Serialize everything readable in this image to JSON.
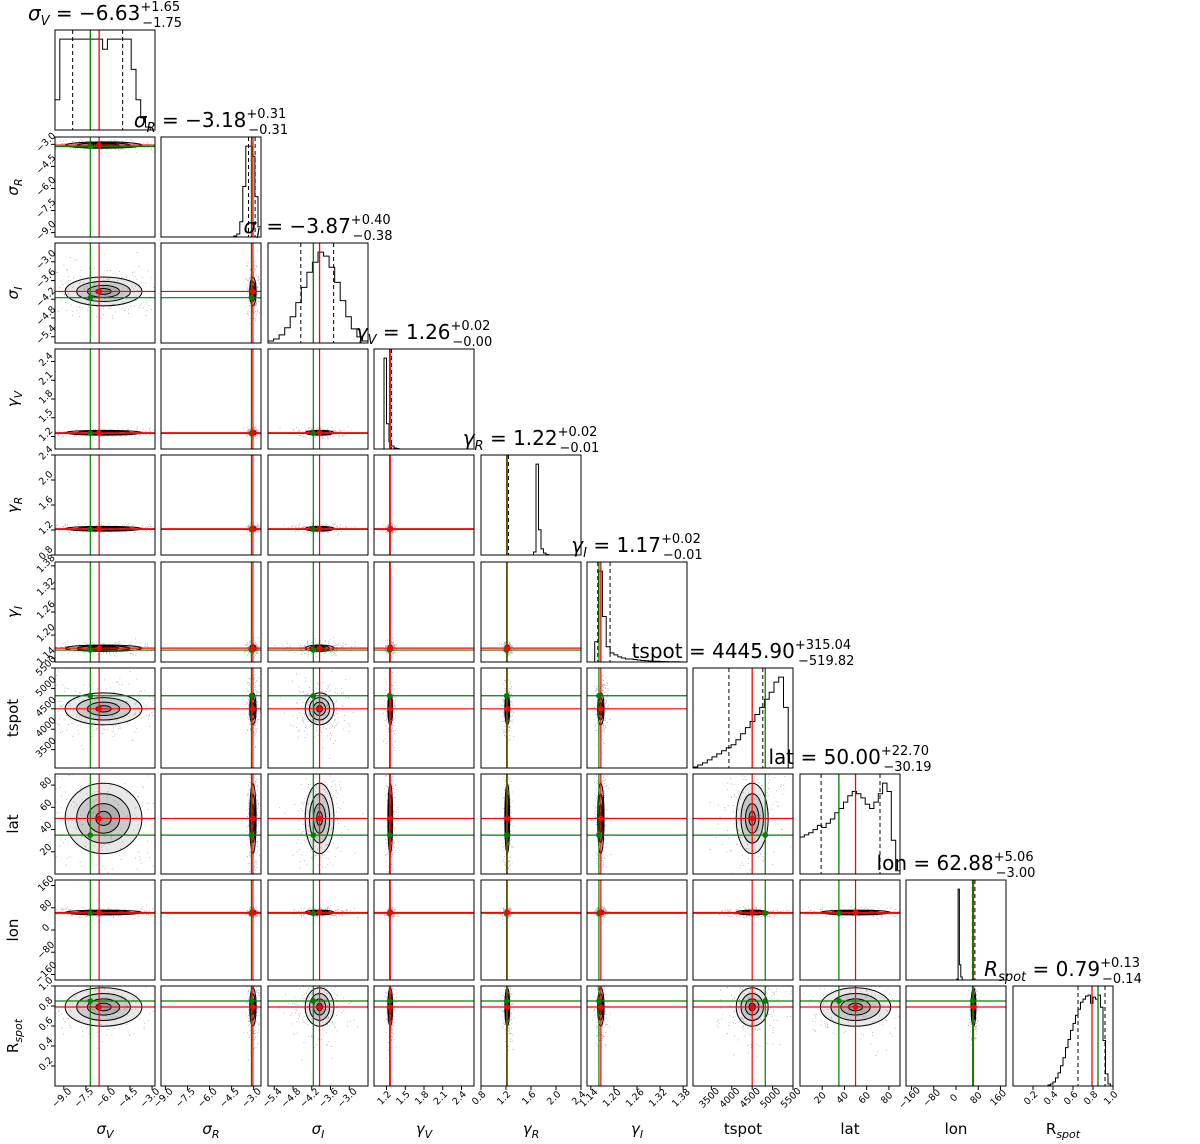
{
  "chart_data": {
    "type": "corner",
    "description_labels": {
      "colors": {
        "truth_red": "#ff0000",
        "truth_green": "#008000",
        "contour": "#000000",
        "fill": "#808080"
      }
    },
    "parameters": [
      {
        "id": "sigma_V",
        "label": "σ",
        "sub": "V",
        "title": "σ",
        "title_sub": "V",
        "value": "= −6.63",
        "plus": "+1.65",
        "minus": "−1.75",
        "range": [
          -9.6,
          -2.8
        ],
        "ticks": [
          -9.0,
          -7.5,
          -6.0,
          -4.5,
          -3.0
        ],
        "tick_labels": [
          "−9.0",
          "−7.5",
          "−6.0",
          "−4.5",
          "−3.0"
        ],
        "red": -6.6,
        "green": -7.2,
        "q16": -8.4,
        "q84": -5.0,
        "hist": [
          3,
          9,
          9,
          9,
          9,
          9,
          9,
          9,
          9,
          9,
          8,
          9,
          9,
          9,
          9,
          9,
          6,
          3,
          1.2,
          0.3,
          0
        ]
      },
      {
        "id": "sigma_R",
        "label": "σ",
        "sub": "R",
        "title": "σ",
        "title_sub": "R",
        "value": "= −3.18",
        "plus": "+0.31",
        "minus": "−0.31",
        "range": [
          -9.3,
          -2.5
        ],
        "ticks": [
          -9.0,
          -7.5,
          -6.0,
          -4.5,
          -3.0
        ],
        "tick_labels": [
          "−9.0",
          "−7.5",
          "−6.0",
          "−4.5",
          "−3.0"
        ],
        "red": -3.05,
        "green": -3.15,
        "q16": -3.35,
        "q84": -2.9,
        "hist": [
          0.0,
          0.0,
          0.0,
          0.0,
          0.0,
          0.0,
          0.0,
          0.0,
          0.0,
          0.0,
          0.0,
          0.0,
          0.0,
          0.0,
          0.0,
          0.0,
          0.0,
          0.0,
          0.0,
          0.0,
          0.0,
          0.0,
          0.0,
          0.0,
          0.1,
          0.3,
          1.5,
          5,
          9,
          9,
          8,
          4,
          1
        ]
      },
      {
        "id": "sigma_I",
        "label": "σ",
        "sub": "I",
        "title": "σ",
        "title_sub": "I",
        "value": "= −3.87",
        "plus": "+0.40",
        "minus": "−0.38",
        "range": [
          -5.6,
          -2.4
        ],
        "ticks": [
          -5.4,
          -4.8,
          -4.2,
          -3.6,
          -3.0
        ],
        "tick_labels": [
          "−5.4",
          "−4.8",
          "−4.2",
          "−3.6",
          "−3.0"
        ],
        "red": -3.95,
        "green": -4.15,
        "q16": -4.55,
        "q84": -3.5,
        "hist": [
          0.2,
          0.4,
          0.8,
          1.5,
          2.6,
          4,
          5.5,
          7,
          8,
          9,
          8.6,
          7.5,
          6,
          4.2,
          2.6,
          1.4,
          0.6,
          0.2
        ]
      },
      {
        "id": "gamma_V",
        "label": "γ",
        "sub": "V",
        "title": "γ",
        "title_sub": "V",
        "value": "= 1.26",
        "plus": "+0.02",
        "minus": "−0.00",
        "range": [
          1.0,
          2.6
        ],
        "ticks": [
          1.2,
          1.5,
          1.8,
          2.1,
          2.4
        ],
        "tick_labels": [
          "1.2",
          "1.5",
          "1.8",
          "2.1",
          "2.4"
        ],
        "red": 1.26,
        "green": 1.25,
        "q16": 1.255,
        "q84": 1.28,
        "hist": [
          0,
          0,
          0,
          0,
          9,
          2.5,
          0.7,
          0.3,
          0.1,
          0.05,
          0,
          0,
          0,
          0,
          0,
          0,
          0,
          0,
          0,
          0,
          0,
          0,
          0,
          0,
          0,
          0,
          0,
          0,
          0,
          0,
          0,
          0,
          0,
          0,
          0,
          0,
          0,
          0,
          0,
          0
        ]
      },
      {
        "id": "gamma_R",
        "label": "γ",
        "sub": "R",
        "title": "γ",
        "title_sub": "R",
        "value": "= 1.22",
        "plus": "+0.02",
        "minus": "−0.01",
        "range": [
          0.8,
          2.4
        ],
        "ticks": [
          0.8,
          1.2,
          1.6,
          2.0,
          2.4
        ],
        "tick_labels": [
          "0.8",
          "1.2",
          "1.6",
          "2.0",
          "2.4"
        ],
        "red": 1.22,
        "green": 1.21,
        "q16": 1.21,
        "q84": 1.24,
        "hist": [
          0,
          0,
          0,
          0,
          0,
          0,
          0,
          0,
          0,
          0,
          0,
          0,
          0,
          0,
          0,
          0,
          0,
          0,
          0,
          0,
          0,
          0.3,
          9,
          2.5,
          0.6,
          0.2,
          0.05,
          0,
          0,
          0,
          0,
          0,
          0,
          0,
          0,
          0,
          0,
          0,
          0,
          0
        ]
      },
      {
        "id": "gamma_I",
        "label": "γ",
        "sub": "I",
        "title": "γ",
        "title_sub": "I",
        "value": "= 1.17",
        "plus": "+0.02",
        "minus": "−0.01",
        "range": [
          1.13,
          1.39
        ],
        "ticks": [
          1.14,
          1.2,
          1.26,
          1.32,
          1.38
        ],
        "tick_labels": [
          "1.14",
          "1.20",
          "1.26",
          "1.32",
          "1.38"
        ],
        "red": 1.166,
        "green": 1.161,
        "q16": 1.158,
        "q84": 1.19,
        "hist": [
          0,
          0,
          2,
          9,
          4.5,
          1.5,
          0.9,
          0.7,
          0.5,
          0.4,
          0.3,
          0.3,
          0.25,
          0.2,
          0.15,
          0.12,
          0.1,
          0.08,
          0.07,
          0.05,
          0.04,
          0.03,
          0.02,
          0.02,
          0.01,
          0.0
        ]
      },
      {
        "id": "tspot",
        "label": "tspot",
        "sub": "",
        "title": "tspot",
        "title_sub": "",
        "value": "= 4445.90",
        "plus": "+315.04",
        "minus": "−519.82",
        "range": [
          3050,
          5500
        ],
        "ticks": [
          3500,
          4000,
          4500,
          5000,
          5500
        ],
        "tick_labels": [
          "3500",
          "4000",
          "4500",
          "5000",
          "5500"
        ],
        "red": 4500,
        "green": 4820,
        "q16": 3930,
        "q84": 4760,
        "hist": [
          0.1,
          0.3,
          0.5,
          0.8,
          1.1,
          1.4,
          1.7,
          2,
          2.3,
          2.8,
          3.4,
          4,
          4.6,
          5.3,
          6,
          6.8,
          7.5,
          8.5,
          9,
          6,
          0
        ]
      },
      {
        "id": "lat",
        "label": "lat",
        "sub": "",
        "title": "lat",
        "title_sub": "",
        "value": "= 50.00",
        "plus": "+22.70",
        "minus": "−30.19",
        "range": [
          0,
          90
        ],
        "ticks": [
          20,
          40,
          60,
          80
        ],
        "tick_labels": [
          "20",
          "40",
          "60",
          "80"
        ],
        "red": 50,
        "green": 35,
        "q16": 19,
        "q84": 72,
        "hist": [
          3.5,
          3.7,
          3.9,
          4.2,
          4.6,
          4.4,
          4.8,
          5.2,
          5.8,
          6.2,
          6.8,
          7.4,
          7.8,
          7.6,
          7.2,
          6.6,
          6.2,
          6.8,
          7.6,
          8.6,
          7.8,
          3.2,
          0.3
        ]
      },
      {
        "id": "lon",
        "label": "lon",
        "sub": "",
        "title": "lon",
        "title_sub": "",
        "value": "= 62.88",
        "plus": "+5.06",
        "minus": "−3.00",
        "range": [
          -180,
          180
        ],
        "ticks": [
          -160,
          -80,
          0,
          80,
          160
        ],
        "tick_labels": [
          "−160",
          "−80",
          "0",
          "80",
          "160"
        ],
        "red": 63,
        "green": 60,
        "q16": 59,
        "q84": 68,
        "hist": [
          0,
          0,
          0,
          0,
          0,
          0,
          0,
          0,
          0,
          0,
          0,
          0,
          0,
          0,
          0,
          0,
          0,
          0,
          0,
          0,
          0,
          0,
          0,
          0,
          0,
          0,
          0,
          0,
          0,
          0,
          0,
          0,
          0,
          0,
          0,
          0,
          0,
          0.1,
          9,
          1.5,
          0.3,
          0,
          0,
          0,
          0,
          0,
          0,
          0,
          0,
          0,
          0,
          0,
          0,
          0,
          0,
          0,
          0,
          0,
          0,
          0,
          0,
          0,
          0,
          0,
          0,
          0,
          0,
          0,
          0,
          0,
          0,
          0,
          0
        ]
      },
      {
        "id": "R_spot",
        "label": "R",
        "sub": "spot",
        "title": "R",
        "title_sub": "spot",
        "value": "= 0.79",
        "plus": "+0.13",
        "minus": "−0.14",
        "range": [
          0,
          1.0
        ],
        "ticks": [
          0.2,
          0.4,
          0.6,
          0.8,
          1.0
        ],
        "tick_labels": [
          "0.2",
          "0.4",
          "0.6",
          "0.8",
          "1.0"
        ],
        "red": 0.79,
        "green": 0.85,
        "q16": 0.65,
        "q84": 0.92,
        "hist": [
          0,
          0,
          0,
          0,
          0,
          0,
          0,
          0,
          0,
          0,
          0,
          0,
          0,
          0,
          0.1,
          0.2,
          0.4,
          0.8,
          1.3,
          2,
          2.8,
          3.8,
          4.6,
          5.5,
          6.2,
          7,
          7.6,
          8.3,
          8.6,
          8.9,
          9,
          8.2,
          8.8,
          8.6,
          9,
          7.8,
          4.5,
          1.2,
          0.2,
          0
        ]
      }
    ],
    "contour_levels": [
      1.0,
      0.7,
      0.42,
      0.2
    ],
    "grid": false,
    "legend": "none"
  }
}
